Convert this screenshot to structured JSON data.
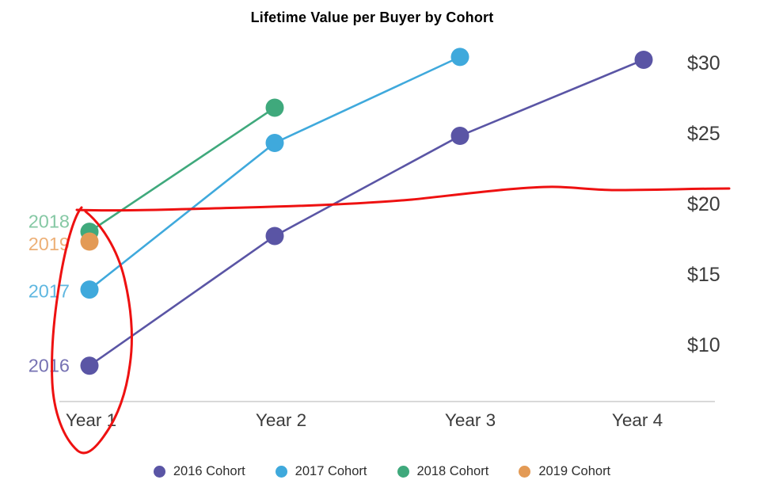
{
  "title": "Lifetime Value per Buyer by Cohort",
  "chart_data": {
    "type": "line",
    "title": "Lifetime Value per Buyer by Cohort",
    "categories": [
      "Year 1",
      "Year 2",
      "Year 3",
      "Year 4"
    ],
    "xlabel": "",
    "ylabel": "",
    "y_ticks": {
      "labels": [
        "$30",
        "$25",
        "$20",
        "$15",
        "$10"
      ],
      "values": [
        30,
        25,
        20,
        15,
        10
      ]
    },
    "ylim": [
      7,
      32
    ],
    "grid": false,
    "legend_position": "bottom",
    "tick_color": "#3c3c3c",
    "axis_line_color": "#d9d9d9",
    "series": [
      {
        "name": "2016 Cohort",
        "year_label": "2016",
        "color": "#5a55a5",
        "label_color": "#7672b3",
        "values": [
          8.5,
          17.7,
          24.8,
          30.2
        ]
      },
      {
        "name": "2017 Cohort",
        "year_label": "2017",
        "color": "#3fa9dc",
        "label_color": "#5fb7e0",
        "values": [
          13.9,
          24.3,
          30.4,
          null
        ]
      },
      {
        "name": "2018 Cohort",
        "year_label": "2018",
        "color": "#3fa97c",
        "label_color": "#85c8a4",
        "values": [
          18,
          26.8,
          null,
          null
        ]
      },
      {
        "name": "2019 Cohort",
        "year_label": "2019",
        "color": "#e39a55",
        "label_color": "#edb077",
        "values": [
          17.3,
          null,
          null,
          null
        ]
      }
    ],
    "annotation": {
      "type": "hand-drawn-red-marker",
      "color": "#ee1111",
      "elements": [
        {
          "kind": "wavy-horizontal-line",
          "approx_value": 20.5,
          "note": "freehand line running across the chart just above the $20 tick"
        },
        {
          "kind": "freehand-circle",
          "around": "Year 1 data points and the Year 1 axis label"
        }
      ]
    }
  }
}
